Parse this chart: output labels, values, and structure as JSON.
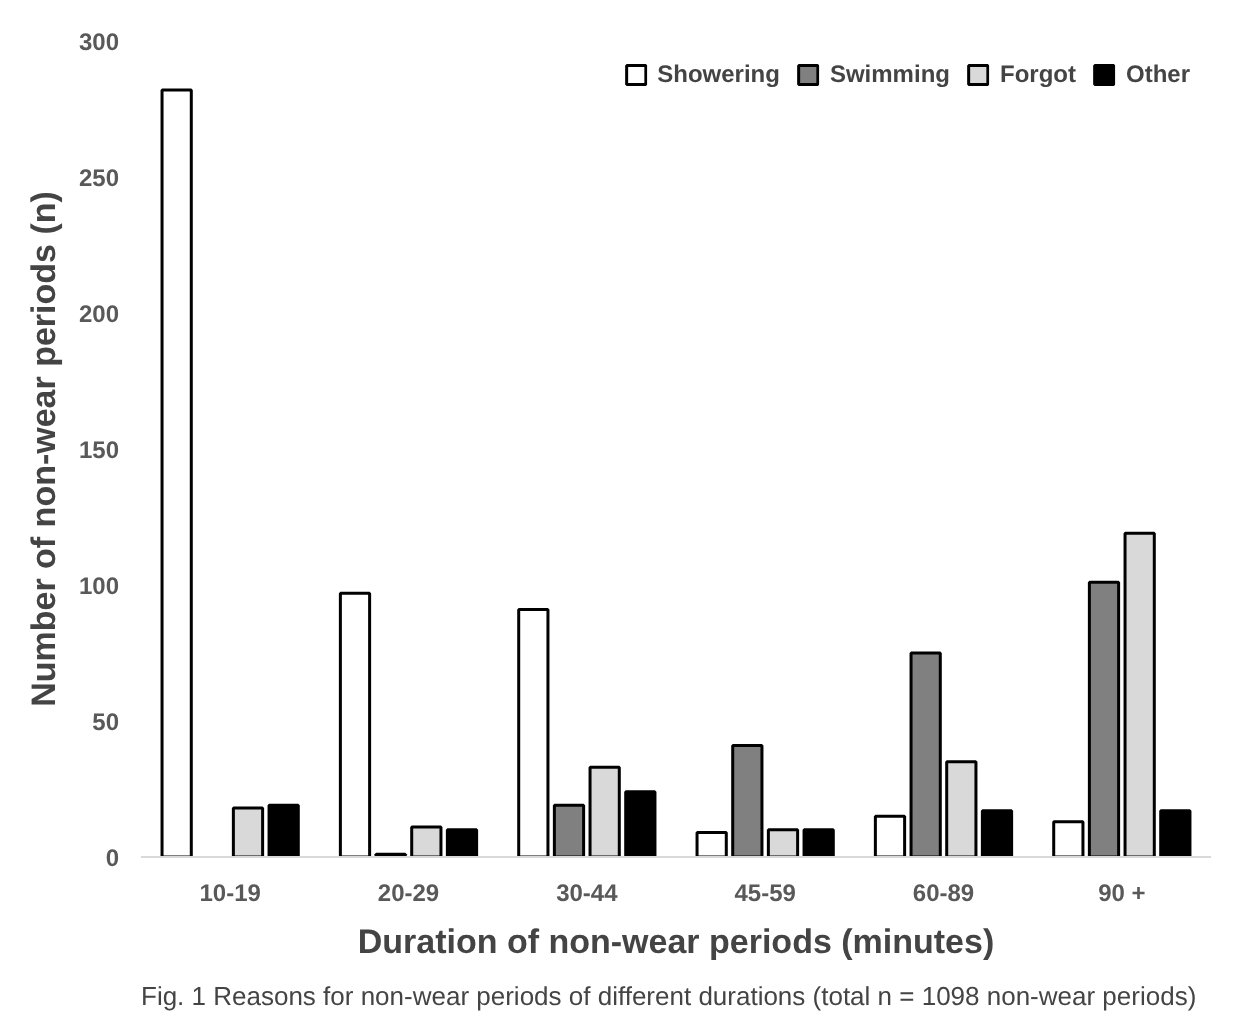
{
  "chart_data": {
    "type": "bar",
    "xlabel": "Duration of non-wear periods (minutes)",
    "ylabel": "Number of non-wear periods (n)",
    "categories": [
      "10-19",
      "20-29",
      "30-44",
      "45-59",
      "60-89",
      "90 +"
    ],
    "series": [
      {
        "name": "Showering",
        "color": "#ffffff",
        "values": [
          282,
          97,
          91,
          9,
          15,
          13
        ]
      },
      {
        "name": "Swimming",
        "color": "#808080",
        "values": [
          null,
          1,
          19,
          41,
          75,
          101
        ]
      },
      {
        "name": "Forgot",
        "color": "#d9d9d9",
        "values": [
          18,
          11,
          33,
          10,
          35,
          119
        ]
      },
      {
        "name": "Other",
        "color": "#000000",
        "values": [
          19,
          10,
          24,
          10,
          17,
          17
        ]
      }
    ],
    "ylim": [
      0,
      300
    ],
    "yticks": [
      0,
      50,
      100,
      150,
      200,
      250,
      300
    ],
    "grid": false,
    "legend": "top right",
    "annotations": [
      "Fig. 1 Reasons for non-wear periods of different durations (total n = 1098 non-wear periods)"
    ]
  }
}
